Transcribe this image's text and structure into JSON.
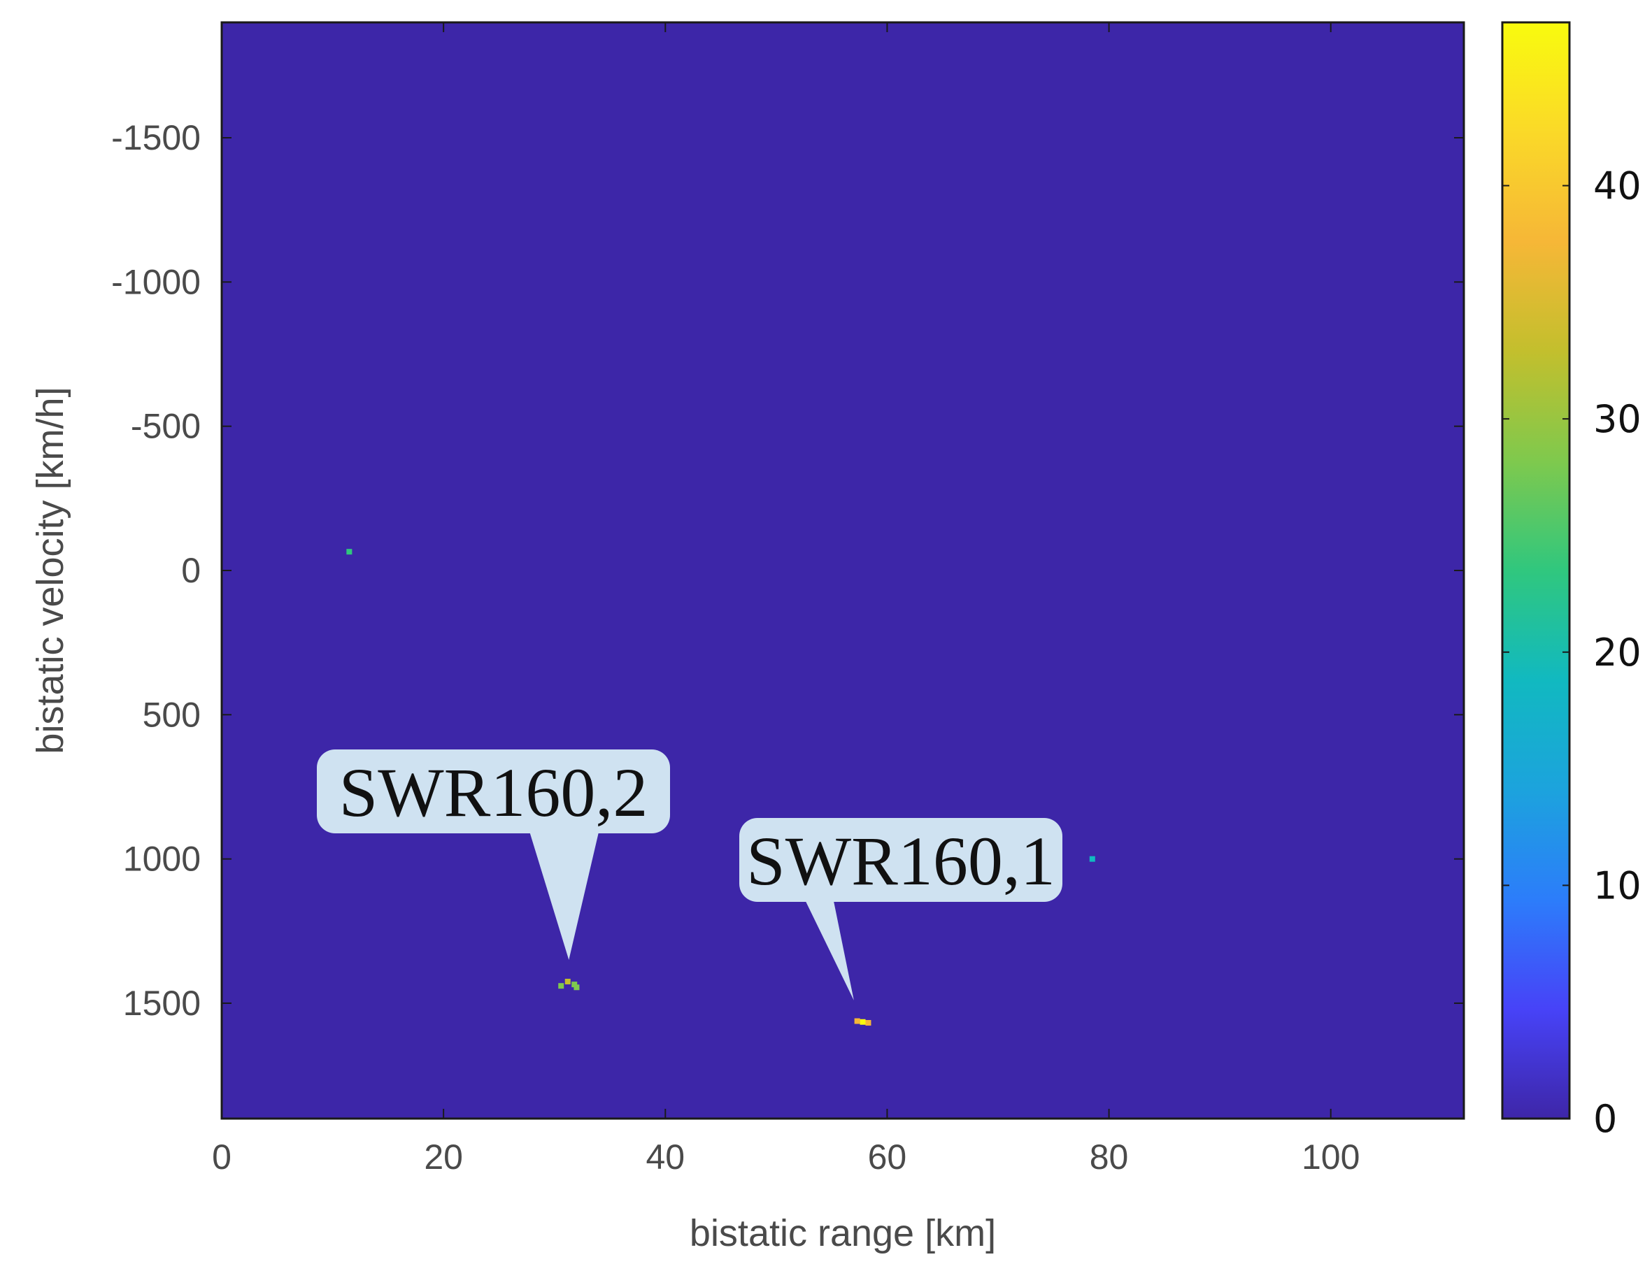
{
  "chart_data": {
    "type": "heatmap",
    "title": "",
    "xlabel": "bistatic range [km]",
    "ylabel": "bistatic velocity [km/h]",
    "xlim": [
      0,
      112
    ],
    "ylim": [
      -1900,
      1900
    ],
    "y_reversed": true,
    "x_ticks": [
      0,
      20,
      40,
      60,
      80,
      100
    ],
    "y_ticks": [
      -1500,
      -1000,
      -500,
      0,
      500,
      1000,
      1500
    ],
    "grid": false,
    "colorbar": {
      "range": [
        0,
        47
      ],
      "ticks": [
        0,
        10,
        20,
        30,
        40
      ],
      "colormap": "parula",
      "colors": [
        "#3e26a8",
        "#4743f8",
        "#2c7dfa",
        "#1ca3dd",
        "#11b9c0",
        "#30c77e",
        "#7fc94d",
        "#c3bf2d",
        "#f6b737",
        "#fad928",
        "#f9fb0e"
      ]
    },
    "background_color": "#3d26a8",
    "points": [
      {
        "x": 11.5,
        "y": -65,
        "value": 22
      },
      {
        "x": 30.6,
        "y": 1440,
        "value": 30
      },
      {
        "x": 31.2,
        "y": 1425,
        "value": 34
      },
      {
        "x": 31.8,
        "y": 1435,
        "value": 30
      },
      {
        "x": 32.0,
        "y": 1445,
        "value": 26
      },
      {
        "x": 57.8,
        "y": 1565,
        "value": 46
      },
      {
        "x": 57.3,
        "y": 1562,
        "value": 38
      },
      {
        "x": 58.3,
        "y": 1568,
        "value": 36
      },
      {
        "x": 78.5,
        "y": 1000,
        "value": 20
      }
    ],
    "annotations": [
      {
        "text": "SWR160,2",
        "target_x": 31.3,
        "target_y": 1350
      },
      {
        "text": "SWR160,1",
        "target_x": 57.0,
        "target_y": 1490
      }
    ]
  }
}
